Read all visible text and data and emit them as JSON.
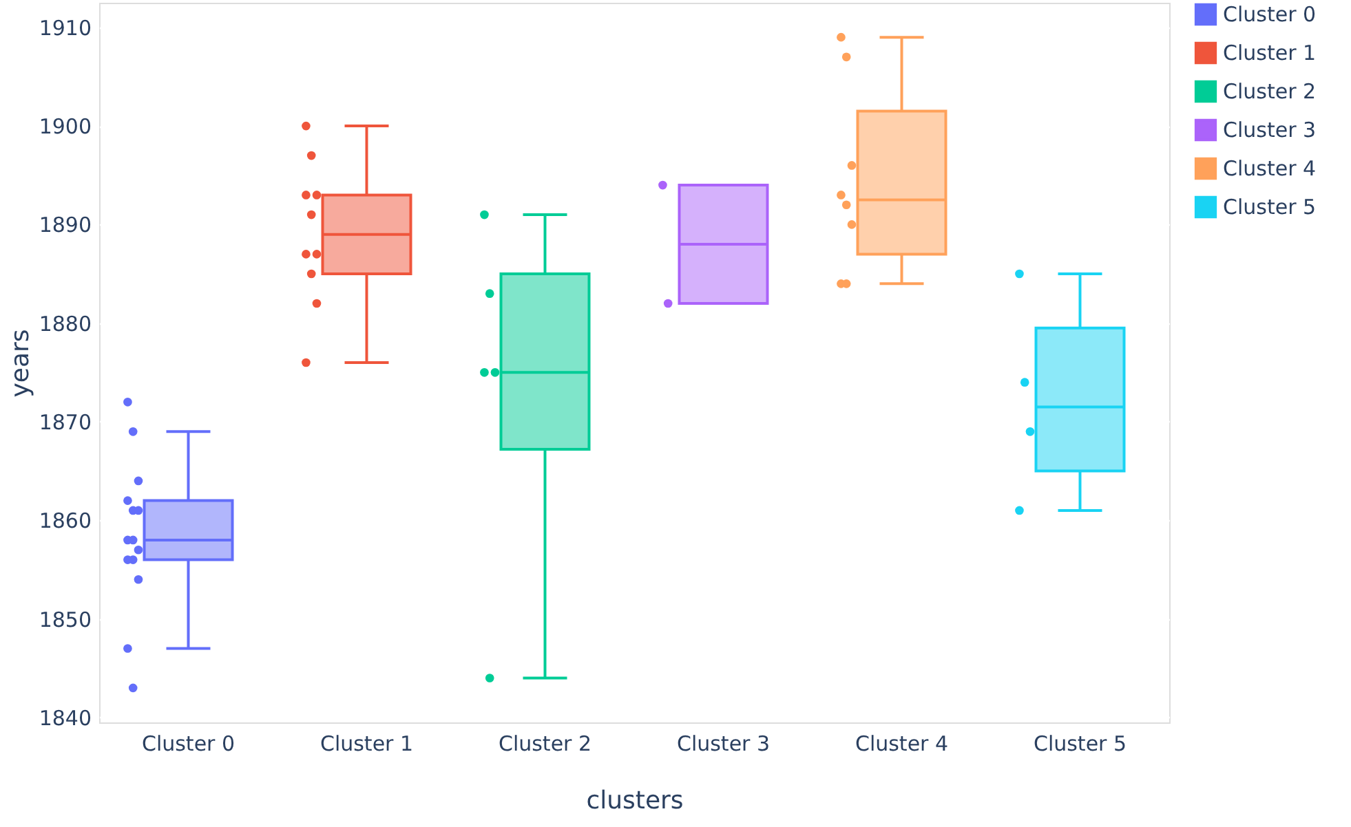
{
  "chart_data": {
    "type": "box",
    "xlabel": "clusters",
    "ylabel": "years",
    "categories": [
      "Cluster 0",
      "Cluster 1",
      "Cluster 2",
      "Cluster 3",
      "Cluster 4",
      "Cluster 5"
    ],
    "series": [
      {
        "type": "box",
        "name": "Cluster 0",
        "color": "#636efa",
        "x": [
          "Cluster 0"
        ],
        "boxes": [
          {
            "low": 1847,
            "q1": 1856,
            "median": 1858,
            "q3": 1862,
            "high": 1869
          }
        ]
      },
      {
        "type": "box",
        "name": "Cluster 1",
        "color": "#ef553b",
        "x": [
          "Cluster 1"
        ],
        "boxes": [
          {
            "low": 1876,
            "q1": 1885,
            "median": 1889,
            "q3": 1893,
            "high": 1900
          }
        ]
      },
      {
        "type": "box",
        "name": "Cluster 2",
        "color": "#00cc96",
        "x": [
          "Cluster 2"
        ],
        "boxes": [
          {
            "low": 1844,
            "q1": 1867.2,
            "median": 1875,
            "q3": 1885,
            "high": 1891
          }
        ]
      },
      {
        "type": "box",
        "name": "Cluster 3",
        "color": "#ab63fa",
        "x": [
          "Cluster 3"
        ],
        "boxes": [
          {
            "low": 1882,
            "q1": 1882,
            "median": 1888,
            "q3": 1894,
            "high": 1894
          }
        ]
      },
      {
        "type": "box",
        "name": "Cluster 4",
        "color": "#ffa15a",
        "x": [
          "Cluster 4"
        ],
        "boxes": [
          {
            "low": 1884,
            "q1": 1887,
            "median": 1892.5,
            "q3": 1901.5,
            "high": 1909
          }
        ]
      },
      {
        "type": "box",
        "name": "Cluster 5",
        "color": "#19d3f3",
        "x": [
          "Cluster 5"
        ],
        "boxes": [
          {
            "low": 1861,
            "q1": 1865,
            "median": 1871.5,
            "q3": 1879.5,
            "high": 1885
          }
        ]
      },
      {
        "type": "scatter",
        "color": "#636efa",
        "x": [
          "Cluster 0",
          "Cluster 0",
          "Cluster 0",
          "Cluster 0",
          "Cluster 0",
          "Cluster 0",
          "Cluster 0",
          "Cluster 0",
          "Cluster 0",
          "Cluster 0",
          "Cluster 0",
          "Cluster 0",
          "Cluster 0",
          "Cluster 0"
        ],
        "values": [
          1872,
          1869,
          1864,
          1862,
          1861,
          1861,
          1858,
          1858,
          1857,
          1856,
          1856,
          1854,
          1847,
          1843
        ]
      },
      {
        "type": "scatter",
        "color": "#ef553b",
        "x": [
          "Cluster 1",
          "Cluster 1",
          "Cluster 1",
          "Cluster 1",
          "Cluster 1",
          "Cluster 1",
          "Cluster 1",
          "Cluster 1",
          "Cluster 1",
          "Cluster 1"
        ],
        "values": [
          1900,
          1897,
          1893,
          1893,
          1891,
          1887,
          1887,
          1885,
          1882,
          1876
        ]
      },
      {
        "type": "scatter",
        "color": "#00cc96",
        "x": [
          "Cluster 2",
          "Cluster 2",
          "Cluster 2",
          "Cluster 2",
          "Cluster 2"
        ],
        "values": [
          1891,
          1883,
          1875,
          1875,
          1844
        ]
      },
      {
        "type": "scatter",
        "color": "#ab63fa",
        "x": [
          "Cluster 3",
          "Cluster 3"
        ],
        "values": [
          1894,
          1882
        ]
      },
      {
        "type": "scatter",
        "color": "#ffa15a",
        "x": [
          "Cluster 4",
          "Cluster 4",
          "Cluster 4",
          "Cluster 4",
          "Cluster 4",
          "Cluster 4",
          "Cluster 4",
          "Cluster 4"
        ],
        "values": [
          1909,
          1907,
          1896,
          1893,
          1892,
          1890,
          1884,
          1884
        ]
      },
      {
        "type": "scatter",
        "color": "#19d3f3",
        "x": [
          "Cluster 5",
          "Cluster 5",
          "Cluster 5",
          "Cluster 5"
        ],
        "values": [
          1885,
          1874,
          1869,
          1861
        ]
      }
    ],
    "ylim": [
      1839.5,
      1912.5
    ],
    "yticks": [
      1840,
      1850,
      1860,
      1870,
      1880,
      1890,
      1900,
      1910
    ],
    "grid": "y",
    "legend": "top right",
    "marker": "circle"
  }
}
